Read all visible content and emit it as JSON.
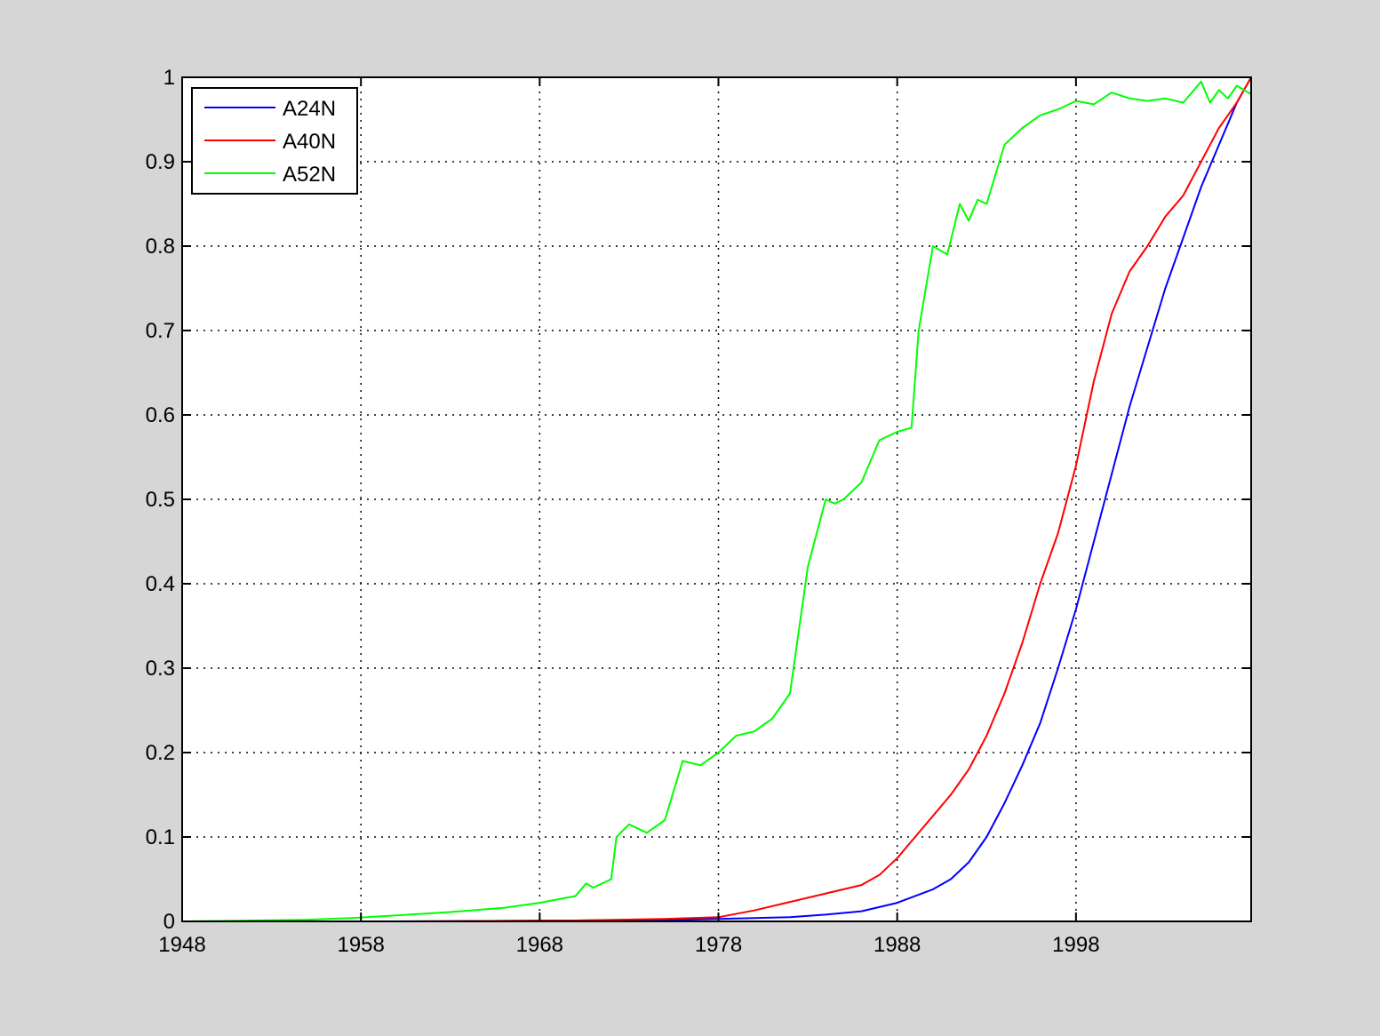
{
  "chart_data": {
    "type": "line",
    "title": "",
    "xlabel": "",
    "ylabel": "",
    "xlim": [
      1948,
      2007.8
    ],
    "ylim": [
      0,
      1
    ],
    "xticks": [
      1948,
      1958,
      1968,
      1978,
      1988,
      1998
    ],
    "xtick_labels": [
      "1948",
      "1958",
      "1968",
      "1978",
      "1988",
      "1998"
    ],
    "yticks": [
      0,
      0.1,
      0.2,
      0.3,
      0.4,
      0.5,
      0.6,
      0.7,
      0.8,
      0.9,
      1
    ],
    "ytick_labels": [
      "0",
      "0.1",
      "0.2",
      "0.3",
      "0.4",
      "0.5",
      "0.6",
      "0.7",
      "0.8",
      "0.9",
      "1"
    ],
    "grid": true,
    "legend_position": "top-left",
    "series": [
      {
        "name": "A24N",
        "color": "#0000ff",
        "x": [
          1948,
          1960,
          1970,
          1976,
          1978,
          1980,
          1982,
          1984,
          1986,
          1988,
          1990,
          1991,
          1992,
          1993,
          1994,
          1995,
          1996,
          1997,
          1998,
          1999,
          2000,
          2001,
          2002,
          2003,
          2004,
          2005,
          2006,
          2007,
          2007.8
        ],
        "y": [
          0,
          0,
          0.001,
          0.002,
          0.003,
          0.004,
          0.005,
          0.008,
          0.012,
          0.022,
          0.038,
          0.05,
          0.07,
          0.1,
          0.14,
          0.185,
          0.235,
          0.3,
          0.37,
          0.45,
          0.53,
          0.61,
          0.68,
          0.75,
          0.81,
          0.87,
          0.92,
          0.97,
          1.0
        ]
      },
      {
        "name": "A40N",
        "color": "#ff0000",
        "x": [
          1948,
          1960,
          1970,
          1975,
          1978,
          1980,
          1982,
          1984,
          1986,
          1987,
          1988,
          1989,
          1990,
          1991,
          1992,
          1993,
          1994,
          1995,
          1996,
          1997,
          1998,
          1999,
          2000,
          2001,
          2002,
          2003,
          2004,
          2005,
          2006,
          2007,
          2007.8
        ],
        "y": [
          0,
          0,
          0.001,
          0.003,
          0.005,
          0.013,
          0.023,
          0.033,
          0.043,
          0.055,
          0.075,
          0.1,
          0.125,
          0.15,
          0.18,
          0.22,
          0.27,
          0.33,
          0.4,
          0.46,
          0.54,
          0.64,
          0.72,
          0.77,
          0.8,
          0.835,
          0.86,
          0.9,
          0.94,
          0.97,
          1.0
        ]
      },
      {
        "name": "A52N",
        "color": "#00ff00",
        "x": [
          1948,
          1955,
          1957.5,
          1960,
          1963,
          1966,
          1968,
          1970,
          1970.6,
          1971,
          1972,
          1972.3,
          1973,
          1974,
          1975,
          1976,
          1977,
          1978,
          1979,
          1980,
          1981,
          1982,
          1983,
          1984,
          1984.5,
          1985,
          1986,
          1987,
          1988,
          1988.8,
          1989.2,
          1990,
          1990.8,
          1991.5,
          1992,
          1992.5,
          1993,
          1994,
          1995,
          1996,
          1997,
          1998,
          1999,
          2000,
          2001,
          2002,
          2003,
          2004,
          2005,
          2005.5,
          2006,
          2006.5,
          2007,
          2007.8
        ],
        "y": [
          0,
          0.002,
          0.004,
          0.007,
          0.011,
          0.016,
          0.022,
          0.03,
          0.045,
          0.04,
          0.05,
          0.1,
          0.115,
          0.105,
          0.12,
          0.19,
          0.185,
          0.2,
          0.22,
          0.225,
          0.24,
          0.27,
          0.42,
          0.5,
          0.495,
          0.5,
          0.52,
          0.57,
          0.58,
          0.585,
          0.7,
          0.8,
          0.79,
          0.85,
          0.83,
          0.855,
          0.85,
          0.92,
          0.94,
          0.955,
          0.962,
          0.972,
          0.968,
          0.982,
          0.975,
          0.972,
          0.975,
          0.97,
          0.995,
          0.97,
          0.985,
          0.975,
          0.99,
          0.98
        ]
      }
    ]
  }
}
